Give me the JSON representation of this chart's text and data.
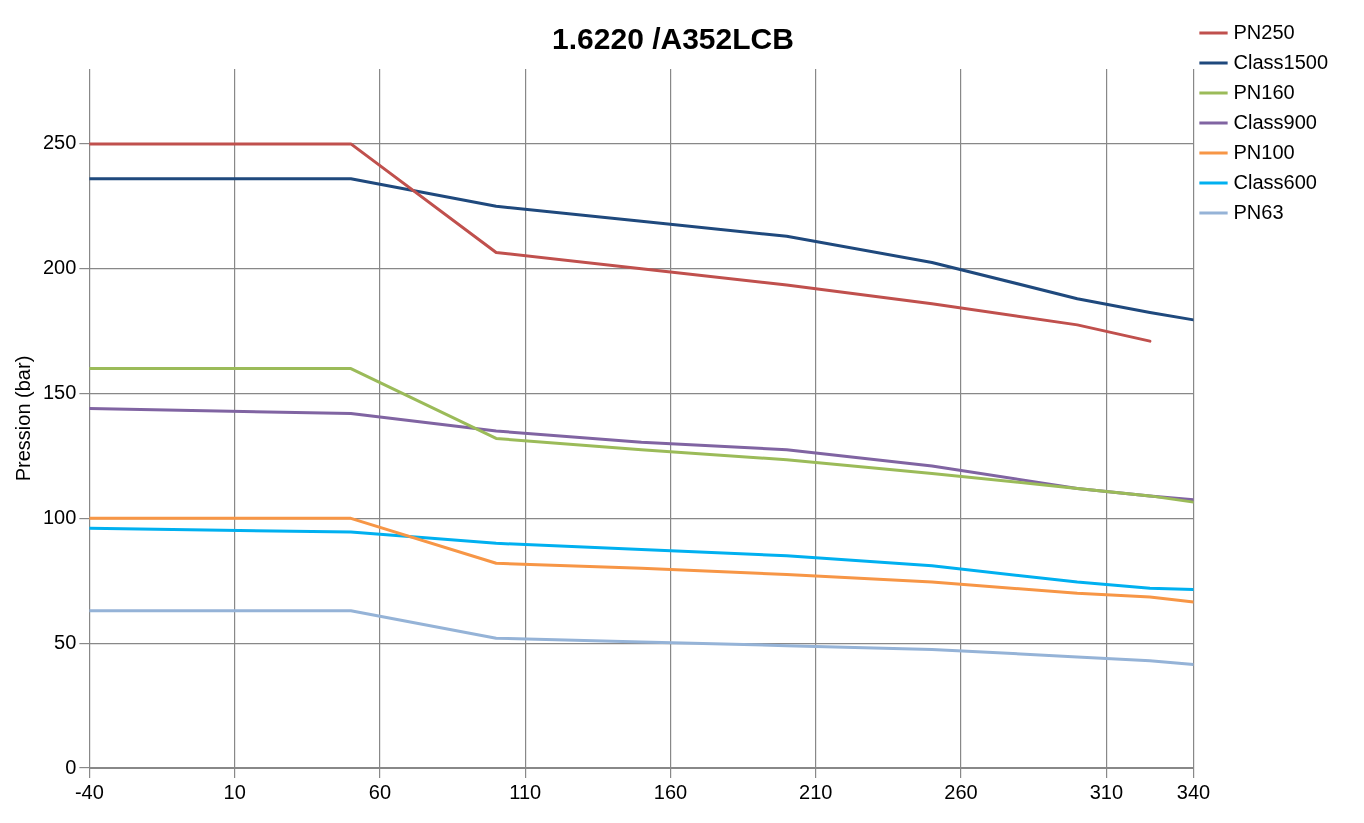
{
  "chart_data": {
    "type": "line",
    "title": "1.6220 /A352LCB",
    "ylabel": "Pression (bar)",
    "x": [
      -40,
      50,
      100,
      150,
      200,
      250,
      300,
      325,
      340
    ],
    "series": [
      {
        "name": "PN250",
        "color": "#c0504d",
        "values": [
          250,
          250,
          206.5,
          200,
          193.5,
          186,
          177.5,
          171,
          null
        ]
      },
      {
        "name": "Class1500",
        "color": "#1f497d",
        "values": [
          236,
          236,
          225,
          219,
          213,
          202.5,
          188,
          182.5,
          179.5
        ]
      },
      {
        "name": "PN160",
        "color": "#9bbb59",
        "values": [
          160,
          160,
          132,
          127.5,
          123.5,
          118,
          112,
          109,
          106.5
        ]
      },
      {
        "name": "Class900",
        "color": "#8064a2",
        "values": [
          144,
          142,
          135,
          130.5,
          127.5,
          121,
          112,
          109,
          107.5
        ]
      },
      {
        "name": "PN100",
        "color": "#f79646",
        "values": [
          100,
          100,
          82,
          80,
          77.5,
          74.5,
          70,
          68.5,
          66.5
        ]
      },
      {
        "name": "Class600",
        "color": "#00b0f0",
        "values": [
          96,
          94.5,
          90,
          87.5,
          85,
          81,
          74.5,
          72,
          71.5
        ]
      },
      {
        "name": "PN63",
        "color": "#95b3d7",
        "values": [
          63,
          63,
          52,
          50.5,
          49,
          47.5,
          44.5,
          43,
          41.5
        ]
      }
    ],
    "xlim": [
      -40,
      340
    ],
    "xticks": [
      -40,
      10,
      60,
      110,
      160,
      210,
      260,
      310,
      340
    ],
    "ylim": [
      0,
      280
    ],
    "yticks": [
      0,
      50,
      100,
      150,
      200,
      250
    ],
    "grid": true,
    "legend": "top right",
    "marker": "none",
    "line_style": "solid"
  }
}
